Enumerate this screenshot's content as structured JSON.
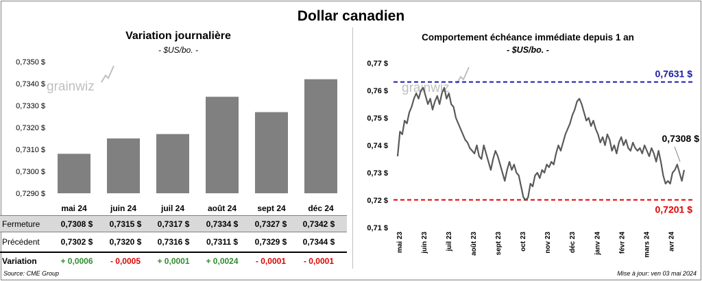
{
  "title": "Dollar canadien",
  "left_panel": {
    "title": "Variation  journalière",
    "subtitle": "- $US/bo. -"
  },
  "right_panel": {
    "title": "Comportement échéance immédiate depuis 1 an",
    "subtitle": "- $US/bo. -"
  },
  "watermark": "grainwiz",
  "table": {
    "rows": [
      {
        "label": "Fermeture",
        "values": [
          "0,7308  $",
          "0,7315  $",
          "0,7317  $",
          "0,7334  $",
          "0,7327  $",
          "0,7342  $"
        ]
      },
      {
        "label": "Précédent",
        "values": [
          "0,7302  $",
          "0,7320  $",
          "0,7316  $",
          "0,7311  $",
          "0,7329  $",
          "0,7344  $"
        ]
      },
      {
        "label": "Variation",
        "values": [
          "+ 0,0006",
          "- 0,0005",
          "+ 0,0001",
          "+ 0,0024",
          "- 0,0001",
          "- 0,0001"
        ]
      }
    ]
  },
  "footer": {
    "source": "Source: CME Group",
    "updated": "Mise à jour: ven 03 mai 2024"
  },
  "colors": {
    "bar": "#808080",
    "line": "#595959",
    "high": "#1a1aa6",
    "low": "#e00000",
    "positive": "#2e8b2e",
    "negative": "#e00000"
  },
  "chart_data": [
    {
      "type": "bar",
      "categories": [
        "mai 24",
        "juin 24",
        "juil 24",
        "août 24",
        "sept 24",
        "déc 24"
      ],
      "values": [
        0.7308,
        0.7315,
        0.7317,
        0.7334,
        0.7327,
        0.7342
      ],
      "ylim": [
        0.729,
        0.735
      ],
      "yticks": [
        "0,7290 $",
        "0,7300 $",
        "0,7310 $",
        "0,7320 $",
        "0,7330 $",
        "0,7340 $",
        "0,7350 $"
      ],
      "grid": false
    },
    {
      "type": "line",
      "x_labels": [
        "mai 23",
        "juin 23",
        "juil 23",
        "août 23",
        "sept 23",
        "oct 23",
        "nov 23",
        "déc 23",
        "janv 24",
        "févr 24",
        "mars 24",
        "avr 24"
      ],
      "values": [
        0.736,
        0.745,
        0.744,
        0.749,
        0.748,
        0.752,
        0.754,
        0.757,
        0.759,
        0.757,
        0.76,
        0.761,
        0.758,
        0.755,
        0.757,
        0.753,
        0.756,
        0.758,
        0.755,
        0.759,
        0.761,
        0.757,
        0.759,
        0.755,
        0.754,
        0.75,
        0.748,
        0.746,
        0.744,
        0.742,
        0.741,
        0.739,
        0.738,
        0.737,
        0.74,
        0.736,
        0.735,
        0.74,
        0.737,
        0.734,
        0.731,
        0.735,
        0.738,
        0.736,
        0.733,
        0.73,
        0.727,
        0.731,
        0.734,
        0.731,
        0.733,
        0.73,
        0.729,
        0.725,
        0.721,
        0.72,
        0.721,
        0.726,
        0.725,
        0.729,
        0.73,
        0.728,
        0.731,
        0.73,
        0.733,
        0.732,
        0.734,
        0.733,
        0.737,
        0.74,
        0.738,
        0.741,
        0.744,
        0.746,
        0.748,
        0.751,
        0.753,
        0.756,
        0.757,
        0.755,
        0.752,
        0.749,
        0.75,
        0.747,
        0.749,
        0.746,
        0.744,
        0.741,
        0.743,
        0.74,
        0.744,
        0.742,
        0.738,
        0.74,
        0.737,
        0.741,
        0.743,
        0.74,
        0.742,
        0.739,
        0.738,
        0.741,
        0.739,
        0.738,
        0.739,
        0.737,
        0.74,
        0.738,
        0.736,
        0.739,
        0.737,
        0.734,
        0.738,
        0.734,
        0.729,
        0.726,
        0.727,
        0.726,
        0.73,
        0.731,
        0.733,
        0.73,
        0.727,
        0.731
      ],
      "ylim": [
        0.71,
        0.77
      ],
      "yticks": [
        "0,71 $",
        "0,72 $",
        "0,73 $",
        "0,74 $",
        "0,75 $",
        "0,76 $",
        "0,77 $"
      ],
      "reference_lines": [
        {
          "value": 0.7631,
          "label": "0,7631  $",
          "style": "dashed",
          "color": "#1a1aa6"
        },
        {
          "value": 0.7201,
          "label": "0,7201  $",
          "style": "dashed",
          "color": "#e00000"
        }
      ],
      "last_label": "0,7308 $",
      "grid": false
    }
  ]
}
